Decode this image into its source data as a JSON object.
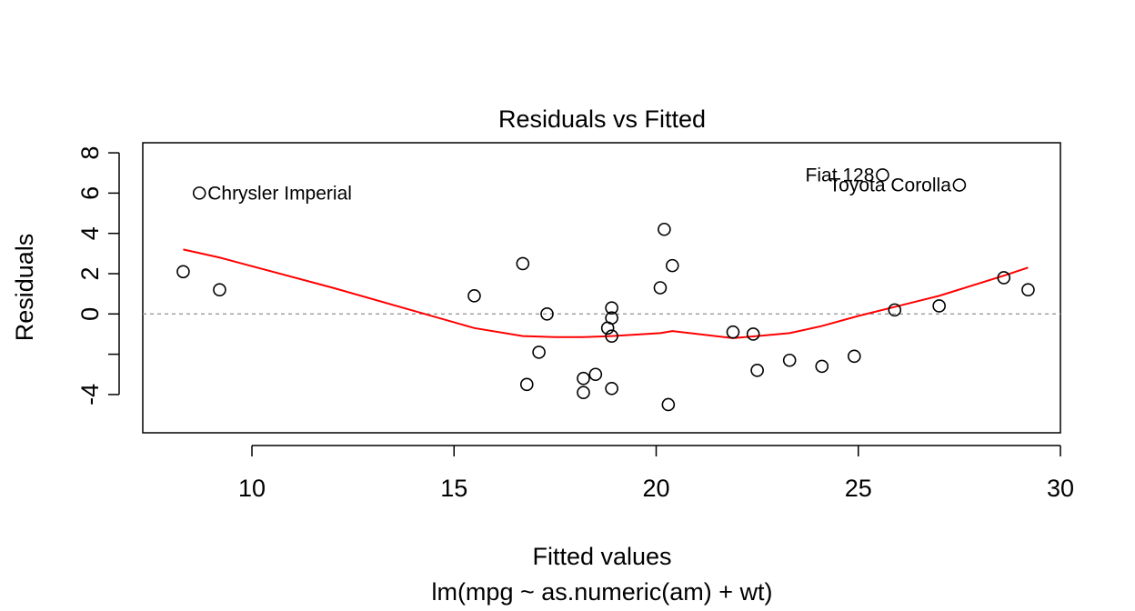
{
  "chart_data": {
    "type": "scatter",
    "title": "Residuals vs Fitted",
    "xlabel": "Fitted values",
    "subtitle": "lm(mpg ~ as.numeric(am) + wt)",
    "ylabel": "Residuals",
    "xlim": [
      7.3,
      30.0
    ],
    "ylim": [
      -5.9,
      8.5
    ],
    "x_ticks": [
      10,
      15,
      20,
      25,
      30
    ],
    "y_ticks": [
      -4,
      -2,
      0,
      2,
      4,
      6,
      8
    ],
    "y_tick_labels": [
      "-4",
      "",
      "0",
      "2",
      "4",
      "6",
      "8"
    ],
    "reference_line_y": 0,
    "points": [
      {
        "x": 8.3,
        "y": 2.1
      },
      {
        "x": 8.7,
        "y": 6.0,
        "label": "Chrysler Imperial"
      },
      {
        "x": 9.2,
        "y": 1.2
      },
      {
        "x": 15.5,
        "y": 0.9
      },
      {
        "x": 16.7,
        "y": 2.5
      },
      {
        "x": 16.8,
        "y": -3.5
      },
      {
        "x": 17.1,
        "y": -1.9
      },
      {
        "x": 17.3,
        "y": 0.0
      },
      {
        "x": 18.2,
        "y": -3.2
      },
      {
        "x": 18.2,
        "y": -3.9
      },
      {
        "x": 18.5,
        "y": -3.0
      },
      {
        "x": 18.8,
        "y": -0.7
      },
      {
        "x": 18.9,
        "y": 0.3
      },
      {
        "x": 18.9,
        "y": -0.2
      },
      {
        "x": 18.9,
        "y": -1.1
      },
      {
        "x": 18.9,
        "y": -3.7
      },
      {
        "x": 20.1,
        "y": 1.3
      },
      {
        "x": 20.2,
        "y": 4.2
      },
      {
        "x": 20.3,
        "y": -4.5
      },
      {
        "x": 20.4,
        "y": 2.4
      },
      {
        "x": 21.9,
        "y": -0.9
      },
      {
        "x": 22.4,
        "y": -1.0
      },
      {
        "x": 22.5,
        "y": -2.8
      },
      {
        "x": 23.3,
        "y": -2.3
      },
      {
        "x": 24.1,
        "y": -2.6
      },
      {
        "x": 24.9,
        "y": -2.1
      },
      {
        "x": 25.6,
        "y": 6.9,
        "label": "Fiat 128"
      },
      {
        "x": 25.9,
        "y": 0.2
      },
      {
        "x": 27.0,
        "y": 0.4
      },
      {
        "x": 27.5,
        "y": 6.4,
        "label": "Toyota Corolla"
      },
      {
        "x": 28.6,
        "y": 1.8
      },
      {
        "x": 29.2,
        "y": 1.2
      }
    ],
    "smooth_line": {
      "color": "#ff0000",
      "x": [
        8.3,
        9.2,
        12.0,
        15.5,
        16.7,
        17.5,
        18.2,
        18.9,
        20.1,
        20.4,
        21.9,
        22.5,
        23.3,
        24.1,
        25.0,
        26.0,
        27.0,
        28.6,
        29.2
      ],
      "y": [
        3.2,
        2.8,
        1.3,
        -0.7,
        -1.1,
        -1.15,
        -1.15,
        -1.1,
        -0.95,
        -0.85,
        -1.2,
        -1.1,
        -0.95,
        -0.6,
        -0.1,
        0.4,
        0.9,
        1.9,
        2.3
      ]
    }
  }
}
